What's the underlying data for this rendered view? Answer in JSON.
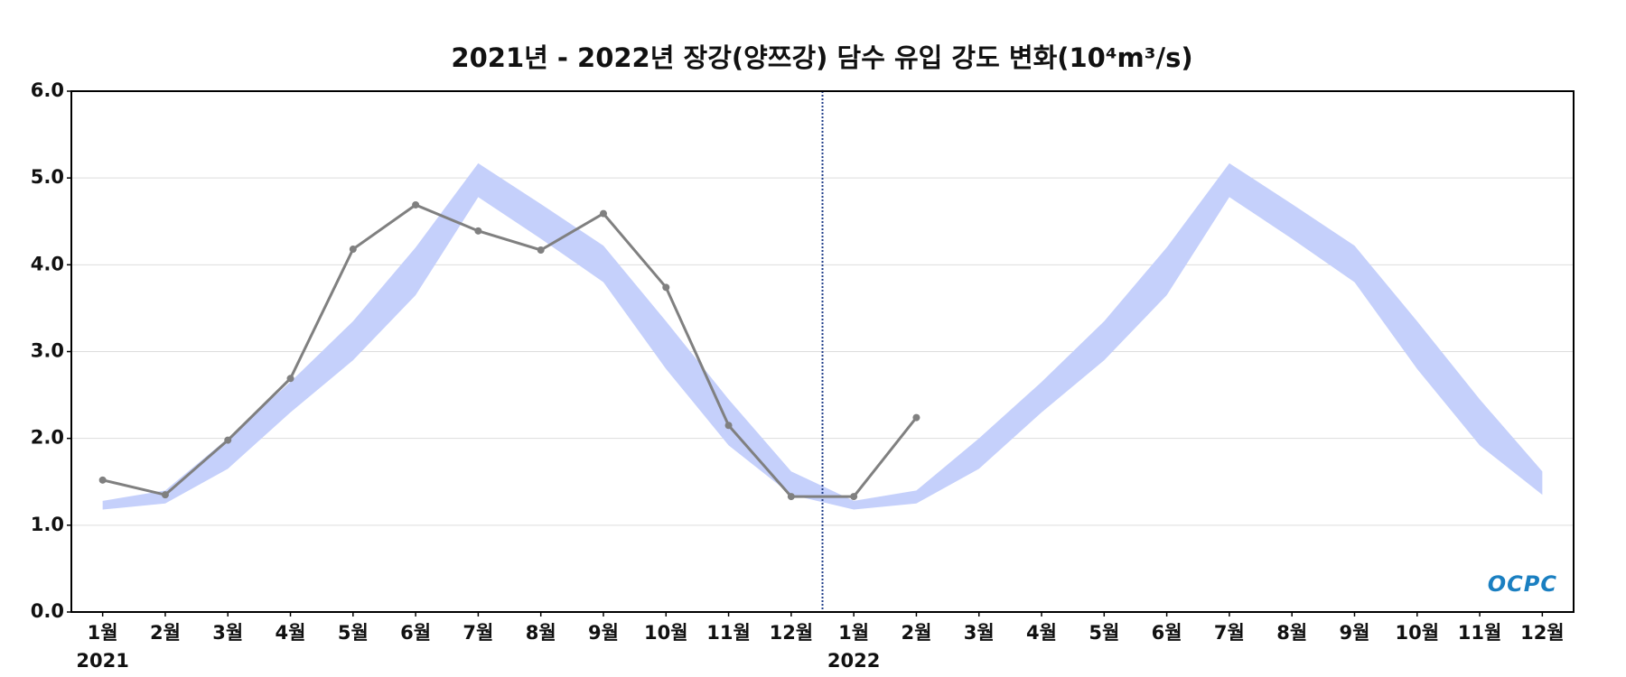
{
  "chart_data": {
    "type": "line",
    "title": "2021년 - 2022년 장강(양쯔강) 담수 유입 강도 변화(10⁴m³/s)",
    "categories": [
      "1월",
      "2월",
      "3월",
      "4월",
      "5월",
      "6월",
      "7월",
      "8월",
      "9월",
      "10월",
      "11월",
      "12월",
      "1월",
      "2월",
      "3월",
      "4월",
      "5월",
      "6월",
      "7월",
      "8월",
      "9월",
      "10월",
      "11월",
      "12월"
    ],
    "year_labels": [
      "2021",
      null,
      null,
      null,
      null,
      null,
      null,
      null,
      null,
      null,
      null,
      null,
      "2022",
      null,
      null,
      null,
      null,
      null,
      null,
      null,
      null,
      null,
      null,
      null
    ],
    "band": {
      "color": "#c5d0fb",
      "lower": [
        1.18,
        1.25,
        1.65,
        2.3,
        2.9,
        3.65,
        4.78,
        4.3,
        3.8,
        2.8,
        1.92,
        1.35,
        1.18,
        1.25,
        1.65,
        2.3,
        2.9,
        3.65,
        4.78,
        4.3,
        3.8,
        2.8,
        1.92,
        1.35
      ],
      "upper": [
        1.28,
        1.4,
        2.0,
        2.65,
        3.35,
        4.2,
        5.17,
        4.7,
        4.22,
        3.35,
        2.45,
        1.62,
        1.28,
        1.4,
        2.0,
        2.65,
        3.35,
        4.2,
        5.17,
        4.7,
        4.22,
        3.35,
        2.45,
        1.62
      ]
    },
    "series": [
      {
        "color": "#808080",
        "values": [
          1.52,
          1.35,
          1.98,
          2.69,
          4.18,
          4.69,
          4.39,
          4.17,
          4.59,
          3.74,
          2.15,
          1.33,
          1.33,
          2.24,
          null,
          null,
          null,
          null,
          null,
          null,
          null,
          null,
          null,
          null
        ]
      }
    ],
    "ylim": [
      0,
      6
    ],
    "yticks": [
      {
        "value": 0,
        "label": "0.0"
      },
      {
        "value": 1,
        "label": "1.0"
      },
      {
        "value": 2,
        "label": "2.0"
      },
      {
        "value": 3,
        "label": "3.0"
      },
      {
        "value": 4,
        "label": "4.0"
      },
      {
        "value": 5,
        "label": "5.0"
      },
      {
        "value": 6,
        "label": "6.0"
      }
    ],
    "grid": true,
    "logo": "OCPC"
  }
}
